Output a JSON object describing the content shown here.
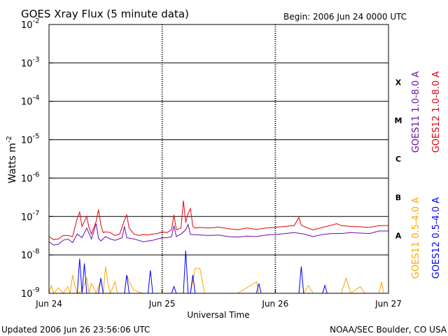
{
  "chart_data": {
    "type": "line",
    "title": "GOES Xray Flux (5 minute data)",
    "begin_label": "Begin:  2006 Jun 24 0000 UTC",
    "xlabel": "Universal Time",
    "ylabel": "Watts m",
    "ylabel_exp": "-2",
    "y_scale": "log",
    "ylim": [
      1e-09,
      0.01
    ],
    "xlim": [
      0,
      72
    ],
    "x_unit": "hours since 2006 Jun 24 0000 UTC",
    "x_ticks": [
      {
        "x": 0,
        "label": "Jun 24"
      },
      {
        "x": 24,
        "label": "Jun 25"
      },
      {
        "x": 48,
        "label": "Jun 26"
      },
      {
        "x": 72,
        "label": "Jun 27"
      }
    ],
    "y_ticks": [
      {
        "exp": -9,
        "label": "10",
        "sup": "-9"
      },
      {
        "exp": -8,
        "label": "10",
        "sup": "-8"
      },
      {
        "exp": -7,
        "label": "10",
        "sup": "-7"
      },
      {
        "exp": -6,
        "label": "10",
        "sup": "-6"
      },
      {
        "exp": -5,
        "label": "10",
        "sup": "-5"
      },
      {
        "exp": -4,
        "label": "10",
        "sup": "-4"
      },
      {
        "exp": -3,
        "label": "10",
        "sup": "-3"
      },
      {
        "exp": -2,
        "label": "10",
        "sup": "-2"
      }
    ],
    "flare_classes": [
      {
        "label": "X",
        "exp": -4
      },
      {
        "label": "M",
        "exp": -5
      },
      {
        "label": "C",
        "exp": -6
      },
      {
        "label": "B",
        "exp": -7
      },
      {
        "label": "A",
        "exp": -8
      }
    ],
    "grid": "horizontal lines at each decade from 1e-8 to 1e-3; dotted vertical lines at day boundaries",
    "legend_placement": "right, rotated",
    "series": [
      {
        "name": "GOES11 1.0-8.0 A",
        "color": "#6a0dad",
        "values": [
          [
            0,
            2.2e-08
          ],
          [
            1,
            1.8e-08
          ],
          [
            2,
            1.9e-08
          ],
          [
            3,
            2.4e-08
          ],
          [
            4,
            2.6e-08
          ],
          [
            5,
            2.1e-08
          ],
          [
            6,
            3.5e-08
          ],
          [
            7,
            2.8e-08
          ],
          [
            8,
            5e-08
          ],
          [
            9,
            2.6e-08
          ],
          [
            10,
            6.5e-08
          ],
          [
            10.5,
            2.7e-08
          ],
          [
            11,
            2.3e-08
          ],
          [
            12,
            3e-08
          ],
          [
            13,
            2.6e-08
          ],
          [
            14,
            2.4e-08
          ],
          [
            15.5,
            2.8e-08
          ],
          [
            16,
            5.5e-08
          ],
          [
            16.5,
            2.8e-08
          ],
          [
            18,
            2.6e-08
          ],
          [
            19,
            2.4e-08
          ],
          [
            20,
            2.2e-08
          ],
          [
            22,
            2.4e-08
          ],
          [
            24,
            2.8e-08
          ],
          [
            25,
            2.8e-08
          ],
          [
            26,
            3e-08
          ],
          [
            26.5,
            5.8e-08
          ],
          [
            27,
            3e-08
          ],
          [
            28,
            3.5e-08
          ],
          [
            29,
            4.5e-08
          ],
          [
            29.5,
            6.2e-08
          ],
          [
            30,
            3.4e-08
          ],
          [
            32,
            3.3e-08
          ],
          [
            34,
            3.2e-08
          ],
          [
            36,
            3.3e-08
          ],
          [
            38,
            3e-08
          ],
          [
            40,
            2.9e-08
          ],
          [
            42,
            3.1e-08
          ],
          [
            44,
            3e-08
          ],
          [
            46,
            3.3e-08
          ],
          [
            48,
            3.4e-08
          ],
          [
            50,
            3.6e-08
          ],
          [
            52,
            3.8e-08
          ],
          [
            54,
            3.5e-08
          ],
          [
            56,
            3e-08
          ],
          [
            58,
            3.4e-08
          ],
          [
            60,
            3.6e-08
          ],
          [
            62,
            3.6e-08
          ],
          [
            64,
            3.8e-08
          ],
          [
            66,
            3.7e-08
          ],
          [
            68,
            3.6e-08
          ],
          [
            70,
            4.2e-08
          ],
          [
            72,
            4.2e-08
          ]
        ]
      },
      {
        "name": "GOES12 1.0-8.0 A",
        "color": "#e8000b",
        "values": [
          [
            0,
            3e-08
          ],
          [
            1,
            2.5e-08
          ],
          [
            2,
            2.6e-08
          ],
          [
            3,
            3.2e-08
          ],
          [
            4,
            3.2e-08
          ],
          [
            5,
            3e-08
          ],
          [
            6,
            9e-08
          ],
          [
            6.5,
            1.3e-07
          ],
          [
            7,
            5.5e-08
          ],
          [
            8,
            1e-07
          ],
          [
            8.5,
            5e-08
          ],
          [
            9,
            3.5e-08
          ],
          [
            10,
            7.5e-08
          ],
          [
            10.5,
            1.5e-07
          ],
          [
            11,
            6e-08
          ],
          [
            11.5,
            3.8e-08
          ],
          [
            12,
            4e-08
          ],
          [
            13,
            3.8e-08
          ],
          [
            14,
            3.2e-08
          ],
          [
            15,
            3.5e-08
          ],
          [
            16,
            8e-08
          ],
          [
            16.5,
            1.1e-07
          ],
          [
            17,
            5e-08
          ],
          [
            18,
            3.5e-08
          ],
          [
            19,
            3.2e-08
          ],
          [
            20,
            3.4e-08
          ],
          [
            21,
            3.3e-08
          ],
          [
            22,
            3.5e-08
          ],
          [
            23,
            3.6e-08
          ],
          [
            24,
            4e-08
          ],
          [
            25,
            3.8e-08
          ],
          [
            26,
            4.5e-08
          ],
          [
            26.5,
            1.1e-07
          ],
          [
            27,
            4.5e-08
          ],
          [
            28,
            5e-08
          ],
          [
            28.5,
            2.6e-07
          ],
          [
            29,
            7e-08
          ],
          [
            29.5,
            1.2e-07
          ],
          [
            30,
            1.6e-07
          ],
          [
            30.5,
            5.5e-08
          ],
          [
            31,
            5e-08
          ],
          [
            32,
            5.2e-08
          ],
          [
            34,
            5e-08
          ],
          [
            36,
            5.3e-08
          ],
          [
            38,
            4.8e-08
          ],
          [
            40,
            4.5e-08
          ],
          [
            42,
            5e-08
          ],
          [
            44,
            4.6e-08
          ],
          [
            46,
            5e-08
          ],
          [
            48,
            5.2e-08
          ],
          [
            50,
            5.5e-08
          ],
          [
            52,
            5.8e-08
          ],
          [
            53,
            9.5e-08
          ],
          [
            53.5,
            6e-08
          ],
          [
            54,
            5.5e-08
          ],
          [
            56,
            4.5e-08
          ],
          [
            58,
            5.2e-08
          ],
          [
            60,
            6e-08
          ],
          [
            61,
            6.5e-08
          ],
          [
            62,
            5.8e-08
          ],
          [
            64,
            5.5e-08
          ],
          [
            66,
            5.4e-08
          ],
          [
            68,
            5.2e-08
          ],
          [
            70,
            5.8e-08
          ],
          [
            72,
            5.8e-08
          ]
        ]
      },
      {
        "name": "GOES11 0.5-4.0 A",
        "color": "#ffa500",
        "values": [
          [
            0,
            1e-09
          ],
          [
            0.5,
            1.6e-09
          ],
          [
            1,
            1e-09
          ],
          [
            2,
            1.4e-09
          ],
          [
            3,
            1e-09
          ],
          [
            4,
            1.5e-09
          ],
          [
            4.5,
            1e-09
          ],
          [
            5,
            3e-09
          ],
          [
            5.5,
            1.6e-09
          ],
          [
            6,
            1e-09
          ],
          [
            7,
            1.2e-09
          ],
          [
            8,
            2.5e-09
          ],
          [
            8.5,
            1e-09
          ],
          [
            9,
            1.8e-09
          ],
          [
            10,
            1e-09
          ],
          [
            11,
            2.2e-09
          ],
          [
            11.5,
            1e-09
          ],
          [
            12,
            5e-09
          ],
          [
            12.5,
            1.8e-09
          ],
          [
            13,
            1e-09
          ],
          [
            14,
            2e-09
          ],
          [
            14.5,
            1e-09
          ],
          [
            16,
            1e-09
          ],
          [
            16.5,
            3e-09
          ],
          [
            17,
            2e-09
          ],
          [
            18,
            1.2e-09
          ],
          [
            20,
            1e-09
          ],
          [
            24,
            1e-09
          ],
          [
            30,
            1e-09
          ],
          [
            31,
            4.5e-09
          ],
          [
            32,
            4.5e-09
          ],
          [
            33,
            1e-09
          ],
          [
            40,
            1e-09
          ],
          [
            44,
            2e-09
          ],
          [
            44.5,
            1e-09
          ],
          [
            48,
            1e-09
          ],
          [
            54,
            1e-09
          ],
          [
            55,
            1.6e-09
          ],
          [
            56,
            1e-09
          ],
          [
            62,
            1e-09
          ],
          [
            63,
            2.5e-09
          ],
          [
            64,
            1e-09
          ],
          [
            66,
            1.5e-09
          ],
          [
            67,
            1e-09
          ],
          [
            70,
            1e-09
          ],
          [
            70.5,
            2e-09
          ],
          [
            71,
            1e-09
          ],
          [
            72,
            1e-09
          ]
        ]
      },
      {
        "name": "GOES12 0.5-4.0 A",
        "color": "#0000ff",
        "values": [
          [
            0,
            1e-09
          ],
          [
            6,
            1e-09
          ],
          [
            6.5,
            8e-09
          ],
          [
            7,
            1e-09
          ],
          [
            7.5,
            6e-09
          ],
          [
            8,
            1e-09
          ],
          [
            10.5,
            1e-09
          ],
          [
            11,
            2.5e-09
          ],
          [
            11.5,
            1e-09
          ],
          [
            16,
            1e-09
          ],
          [
            16.5,
            3e-09
          ],
          [
            17,
            1e-09
          ],
          [
            21,
            1e-09
          ],
          [
            21.5,
            4e-09
          ],
          [
            22,
            1e-09
          ],
          [
            26,
            1e-09
          ],
          [
            26.5,
            1.5e-09
          ],
          [
            27,
            1e-09
          ],
          [
            28.5,
            1e-09
          ],
          [
            29,
            1.3e-08
          ],
          [
            29.5,
            1e-09
          ],
          [
            30,
            1e-09
          ],
          [
            30.5,
            3e-09
          ],
          [
            31,
            1e-09
          ],
          [
            44,
            1e-09
          ],
          [
            44.5,
            1.8e-09
          ],
          [
            45,
            1e-09
          ],
          [
            53,
            1e-09
          ],
          [
            53.5,
            5e-09
          ],
          [
            54,
            1e-09
          ],
          [
            58,
            1e-09
          ],
          [
            58.5,
            1.6e-09
          ],
          [
            59,
            1e-09
          ],
          [
            72,
            1e-09
          ]
        ]
      }
    ]
  },
  "footer": {
    "updated": "Updated 2006 Jun 26 23:56:06 UTC",
    "source": "NOAA/SEC Boulder, CO USA"
  }
}
